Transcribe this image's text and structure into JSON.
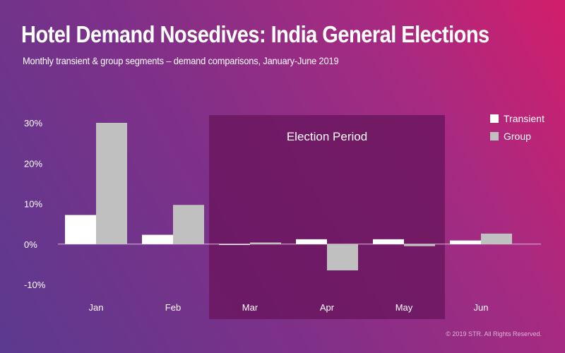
{
  "header": {
    "title": "Hotel Demand Nosedives: India General Elections",
    "subtitle": "Monthly transient & group segments – demand comparisons, January-June 2019"
  },
  "footer": {
    "copyright": "© 2019 STR. All Rights Reserved."
  },
  "colors": {
    "transient": "#ffffff",
    "group": "#c0c0c0",
    "election_band": "#6a165e"
  },
  "chart_data": {
    "type": "bar",
    "title": "Hotel Demand Nosedives: India General Elections",
    "categories": [
      "Jan",
      "Feb",
      "Mar",
      "Apr",
      "May",
      "Jun"
    ],
    "series": [
      {
        "name": "Transient",
        "values": [
          7.2,
          2.3,
          -0.2,
          1.2,
          1.2,
          0.9
        ]
      },
      {
        "name": "Group",
        "values": [
          30.0,
          9.7,
          0.4,
          -6.5,
          -0.5,
          2.6
        ]
      }
    ],
    "ylim": [
      -10,
      30
    ],
    "yticks": [
      -10,
      0,
      10,
      20,
      30
    ],
    "ytick_labels": [
      "-10%",
      "0%",
      "10%",
      "20%",
      "30%"
    ],
    "xlabel": "",
    "ylabel": "",
    "legend": "top-right",
    "annotations": [
      {
        "label": "Election Period",
        "from_category": "Mar",
        "to_category": "May"
      }
    ]
  }
}
